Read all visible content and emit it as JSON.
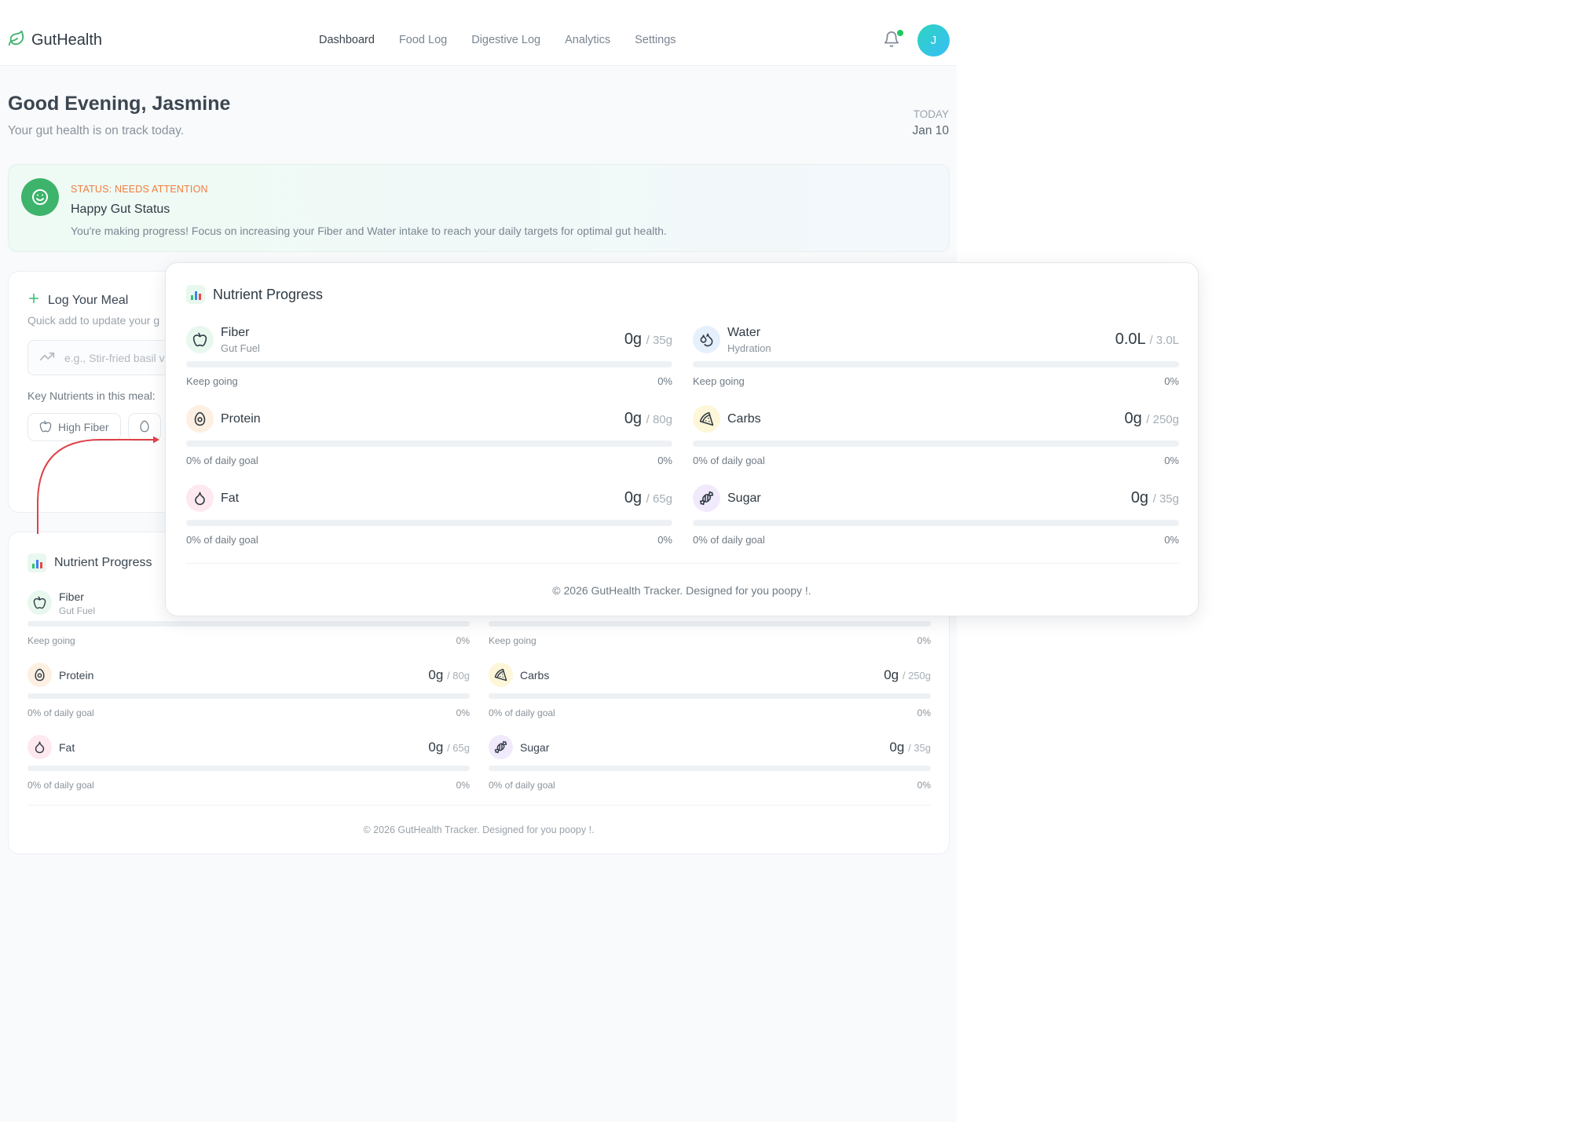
{
  "header": {
    "brand": "GutHealth",
    "nav": [
      "Dashboard",
      "Food Log",
      "Digestive Log",
      "Analytics",
      "Settings"
    ],
    "active_nav": "Dashboard",
    "avatar_initial": "J"
  },
  "greeting": {
    "title": "Good Evening, Jasmine",
    "subtitle": "Your gut health is on track today.",
    "today_label": "TODAY",
    "today_date": "Jan 10"
  },
  "status": {
    "label": "STATUS: NEEDS ATTENTION",
    "title": "Happy Gut Status",
    "message": "You're making progress! Focus on increasing your Fiber and Water intake to reach your daily targets for optimal gut health."
  },
  "meal": {
    "title": "Log Your Meal",
    "subtitle": "Quick add to update your g",
    "input_placeholder": "e.g., Stir-fried basil v",
    "key_nutrients_label": "Key Nutrients in this meal:",
    "chips": [
      "High Fiber"
    ]
  },
  "nutrients": {
    "title": "Nutrient Progress",
    "items": [
      {
        "name": "Fiber",
        "sub": "Gut Fuel",
        "current": "0g",
        "goal": "/ 35g",
        "status": "Keep going",
        "pct": "0%",
        "progress": 0,
        "icon": "apple-icon",
        "color": "#e8f8ee"
      },
      {
        "name": "Water",
        "sub": "Hydration",
        "current": "0.0L",
        "goal": "/ 3.0L",
        "status": "Keep going",
        "pct": "0%",
        "progress": 0,
        "icon": "droplets-icon",
        "color": "#e5f0fc"
      },
      {
        "name": "Protein",
        "sub": "",
        "current": "0g",
        "goal": "/ 80g",
        "status": "0% of daily goal",
        "pct": "0%",
        "progress": 0,
        "icon": "egg-icon",
        "color": "#fdf0e2"
      },
      {
        "name": "Carbs",
        "sub": "",
        "current": "0g",
        "goal": "/ 250g",
        "status": "0% of daily goal",
        "pct": "0%",
        "progress": 0,
        "icon": "pizza-icon",
        "color": "#fdf6d8"
      },
      {
        "name": "Fat",
        "sub": "",
        "current": "0g",
        "goal": "/ 65g",
        "status": "0% of daily goal",
        "pct": "0%",
        "progress": 0,
        "icon": "drop-icon",
        "color": "#fde9ef"
      },
      {
        "name": "Sugar",
        "sub": "",
        "current": "0g",
        "goal": "/ 35g",
        "status": "0% of daily goal",
        "pct": "0%",
        "progress": 0,
        "icon": "candy-icon",
        "color": "#f1eafc"
      }
    ],
    "footer": "© 2026 GutHealth Tracker. Designed for you poopy !."
  },
  "colors": {
    "accent_green": "#34c16e",
    "status_orange": "#f07d3c",
    "annotation_red": "#e0424a"
  }
}
